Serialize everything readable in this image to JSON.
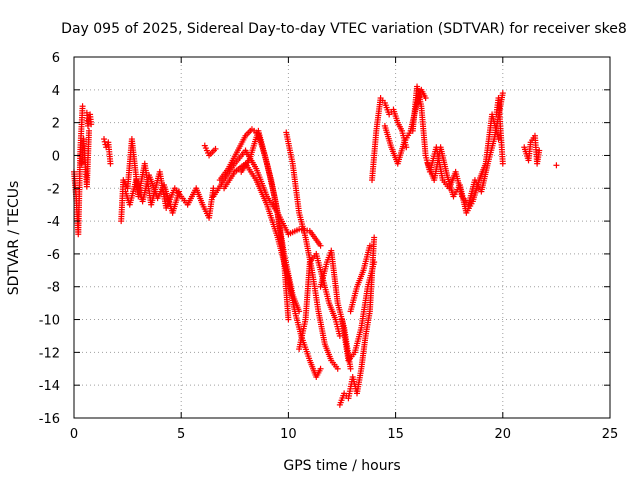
{
  "chart_data": {
    "type": "scatter",
    "title": "Day 095 of 2025, Sidereal Day-to-day VTEC variation (SDTVAR) for receiver ske8",
    "xlabel": "GPS time / hours",
    "ylabel": "SDTVAR / TECUs",
    "xlim": [
      0,
      25
    ],
    "ylim": [
      -16,
      6
    ],
    "xticks": [
      0,
      5,
      10,
      15,
      20,
      25
    ],
    "yticks": [
      -16,
      -14,
      -12,
      -10,
      -8,
      -6,
      -4,
      -2,
      0,
      2,
      4,
      6
    ],
    "grid": true,
    "marker": "+",
    "marker_color": "#ff0000",
    "series": [
      {
        "name": "SDTVAR",
        "segments": [
          {
            "x": [
              0.0,
              0.1,
              0.2,
              0.3,
              0.4
            ],
            "y": [
              -1.0,
              -2.5,
              -4.8,
              0.5,
              3.0
            ]
          },
          {
            "x": [
              0.35,
              0.45,
              0.55,
              0.6,
              0.7
            ],
            "y": [
              -0.5,
              1.0,
              -1.0,
              -1.9,
              1.5
            ]
          },
          {
            "x": [
              0.6,
              0.65,
              0.7,
              0.75,
              0.8
            ],
            "y": [
              2.6,
              1.8,
              2.2,
              2.5,
              1.9
            ]
          },
          {
            "x": [
              1.4,
              1.5,
              1.6,
              1.7
            ],
            "y": [
              1.0,
              0.5,
              0.8,
              -0.5
            ]
          },
          {
            "x": [
              2.2,
              2.3,
              2.5,
              2.7,
              3.0,
              3.3,
              3.6,
              4.0,
              4.3,
              4.7,
              5.0,
              5.3,
              5.7,
              6.0,
              6.3,
              6.5
            ],
            "y": [
              -4.0,
              -1.5,
              -2.0,
              1.0,
              -2.5,
              -0.5,
              -3.0,
              -1.0,
              -3.2,
              -2.0,
              -2.5,
              -3.0,
              -2.0,
              -3.0,
              -3.8,
              -2.0
            ]
          },
          {
            "x": [
              2.4,
              2.6,
              2.9,
              3.2,
              3.5,
              3.9,
              4.2,
              4.6,
              4.9
            ],
            "y": [
              -2.2,
              -3.0,
              -1.5,
              -2.8,
              -1.2,
              -2.6,
              -1.8,
              -3.5,
              -2.2
            ]
          },
          {
            "x": [
              6.1,
              6.3,
              6.6
            ],
            "y": [
              0.6,
              0.0,
              0.4
            ]
          },
          {
            "x": [
              6.5,
              7.0,
              7.5,
              8.0,
              8.5,
              9.0,
              9.5,
              10.0,
              10.5,
              11.0,
              11.5
            ],
            "y": [
              -2.5,
              -1.5,
              -0.5,
              0.3,
              -0.8,
              -2.5,
              -3.5,
              -4.8,
              -4.5,
              -4.6,
              -5.5
            ]
          },
          {
            "x": [
              6.8,
              7.2,
              7.6,
              8.0,
              8.3,
              8.6,
              8.9,
              9.2,
              9.5,
              9.8,
              10.0
            ],
            "y": [
              -1.5,
              -0.8,
              0.2,
              1.2,
              1.6,
              1.3,
              0.0,
              -1.5,
              -3.5,
              -6.5,
              -10.0
            ]
          },
          {
            "x": [
              7.0,
              7.5,
              8.0,
              8.5,
              9.0,
              9.5,
              10.0,
              10.3,
              10.6,
              11.0,
              11.3,
              11.5
            ],
            "y": [
              -2.0,
              -1.0,
              -0.5,
              -1.5,
              -3.0,
              -5.0,
              -7.5,
              -9.5,
              -11.0,
              -12.5,
              -13.5,
              -13.0
            ]
          },
          {
            "x": [
              7.8,
              8.2,
              8.6,
              9.0,
              9.4,
              9.8,
              10.2,
              10.5
            ],
            "y": [
              -1.0,
              -0.2,
              1.5,
              -0.5,
              -2.8,
              -6.0,
              -8.5,
              -9.5
            ]
          },
          {
            "x": [
              9.9,
              10.2,
              10.5,
              10.8,
              11.1,
              11.4,
              11.7,
              12.0,
              12.3
            ],
            "y": [
              1.4,
              -0.5,
              -3.5,
              -5.0,
              -7.0,
              -9.5,
              -11.5,
              -12.5,
              -13.0
            ]
          },
          {
            "x": [
              10.5,
              10.8,
              11.0,
              11.3,
              11.6,
              11.9,
              12.2,
              12.4
            ],
            "y": [
              -11.8,
              -10.0,
              -6.5,
              -6.0,
              -7.5,
              -9.0,
              -10.0,
              -11.0
            ]
          },
          {
            "x": [
              11.5,
              11.8,
              12.0,
              12.3,
              12.6,
              12.9
            ],
            "y": [
              -8.0,
              -6.5,
              -5.8,
              -9.0,
              -10.5,
              -13.0
            ]
          },
          {
            "x": [
              12.4,
              12.6,
              12.8,
              13.0,
              13.2,
              13.4,
              13.6,
              13.8,
              14.0
            ],
            "y": [
              -15.2,
              -14.5,
              -14.8,
              -13.5,
              -14.5,
              -13.0,
              -11.0,
              -9.5,
              -5.0
            ]
          },
          {
            "x": [
              12.5,
              12.8,
              13.1,
              13.4,
              13.7,
              14.0
            ],
            "y": [
              -10.0,
              -12.5,
              -12.0,
              -10.5,
              -8.0,
              -6.5
            ]
          },
          {
            "x": [
              12.9,
              13.2,
              13.5,
              13.8
            ],
            "y": [
              -9.5,
              -8.0,
              -7.0,
              -5.5
            ]
          },
          {
            "x": [
              13.9,
              14.1,
              14.3,
              14.5,
              14.7,
              14.9,
              15.1,
              15.3,
              15.5
            ],
            "y": [
              -1.5,
              1.5,
              3.5,
              3.2,
              2.5,
              2.8,
              2.0,
              1.5,
              0.5
            ]
          },
          {
            "x": [
              14.5,
              14.8,
              15.1,
              15.4,
              15.7,
              16.0,
              16.2,
              16.4
            ],
            "y": [
              1.8,
              0.5,
              -0.5,
              0.8,
              1.5,
              3.2,
              4.0,
              3.5
            ]
          },
          {
            "x": [
              15.8,
              16.0,
              16.2,
              16.4,
              16.6,
              16.9,
              17.2,
              17.5,
              17.8,
              18.1,
              18.4,
              18.7,
              19.0,
              19.3,
              19.6,
              20.0
            ],
            "y": [
              1.5,
              4.2,
              3.0,
              0.0,
              -1.0,
              0.5,
              -1.5,
              -2.0,
              -1.0,
              -2.5,
              -3.0,
              -1.5,
              -2.2,
              -0.5,
              1.0,
              3.8
            ]
          },
          {
            "x": [
              16.5,
              16.8,
              17.1,
              17.4,
              17.7,
              18.0,
              18.3,
              18.6,
              18.9,
              19.2,
              19.5,
              19.8
            ],
            "y": [
              -0.5,
              -1.5,
              0.5,
              -1.2,
              -2.5,
              -1.8,
              -3.5,
              -2.8,
              -1.5,
              -0.5,
              2.5,
              1.0
            ]
          },
          {
            "x": [
              19.7,
              19.8,
              19.9,
              20.0
            ],
            "y": [
              2.5,
              3.5,
              1.5,
              -0.5
            ]
          },
          {
            "x": [
              21.0,
              21.2,
              21.3,
              21.5,
              21.6,
              21.7
            ],
            "y": [
              0.5,
              -0.3,
              0.8,
              1.2,
              -0.5,
              0.3
            ]
          },
          {
            "x": [
              22.5
            ],
            "y": [
              -0.6
            ]
          }
        ]
      }
    ]
  }
}
